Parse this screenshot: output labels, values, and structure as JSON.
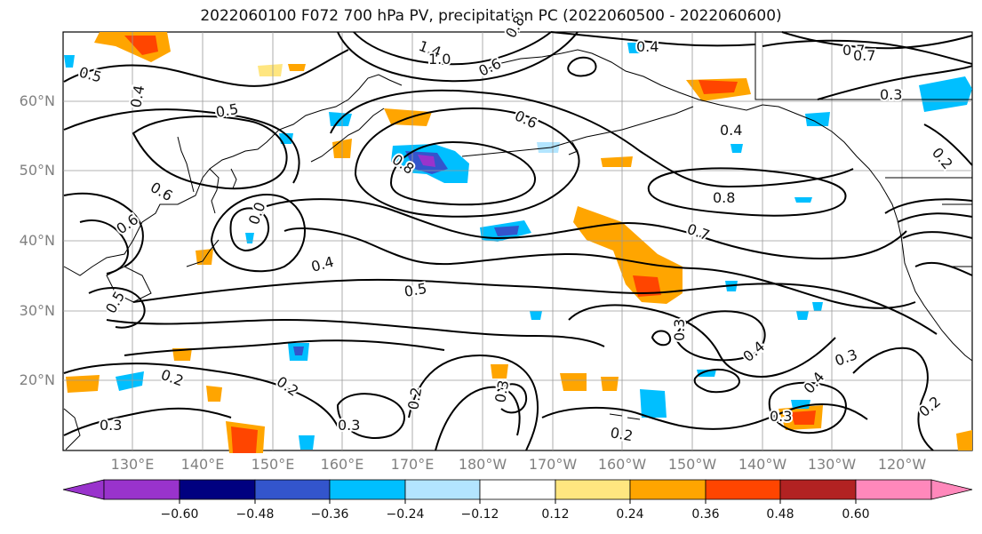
{
  "title": "2022060100 F072 700 hPa PV, precipitation PC (2022060500 - 2022060600)",
  "map": {
    "lat_labels": [
      "60°N",
      "50°N",
      "40°N",
      "30°N",
      "20°N"
    ],
    "lon_labels": [
      "130°E",
      "140°E",
      "150°E",
      "160°E",
      "170°E",
      "180°W",
      "170°W",
      "160°W",
      "150°W",
      "140°W",
      "130°W",
      "120°W"
    ],
    "contour_labels": [
      "1.4",
      "1.0",
      "0.8",
      "0.4",
      "0.7",
      "0.7",
      "0.3",
      "0.5",
      "0.4",
      "0.6",
      "0.6",
      "0.5",
      "0.8",
      "0.4",
      "0.2",
      "0.6",
      "0.6",
      "0.0",
      "0.8",
      "0.7",
      "0.4",
      "0.5",
      "0.3",
      "0.4",
      "0.3",
      "0.5",
      "0.2",
      "0.2",
      "0.2",
      "0.3",
      "0.3",
      "0.4",
      "0.3",
      "0.2",
      "0.2",
      "0.3"
    ]
  },
  "colorbar": {
    "tick_labels": [
      "−0.60",
      "−0.48",
      "−0.36",
      "−0.24",
      "−0.12",
      "0.12",
      "0.24",
      "0.36",
      "0.48",
      "0.60"
    ],
    "colors": [
      "#9933cc",
      "#000080",
      "#3355cc",
      "#00bfff",
      "#b3e5ff",
      "#ffffff",
      "#ffe680",
      "#ffa500",
      "#ff4500",
      "#b22222",
      "#ff88bb"
    ]
  }
}
